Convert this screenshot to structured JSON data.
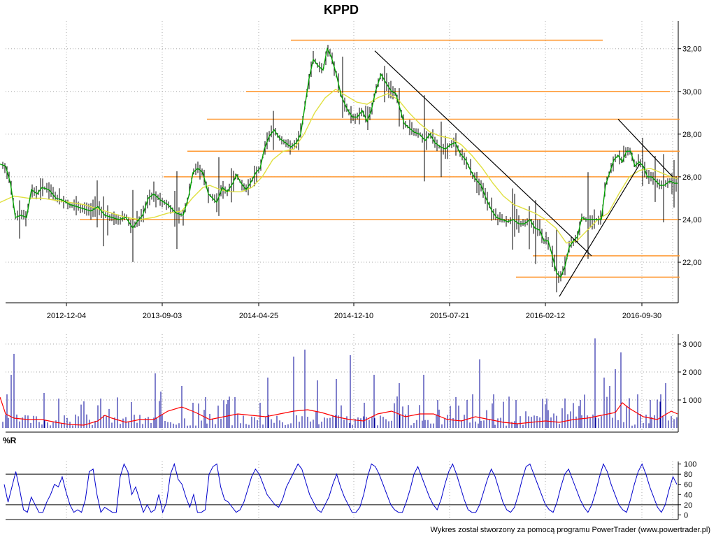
{
  "chart_data": {
    "type": "line",
    "title": "KPPD",
    "footer": "Wykres został stworzony za pomocą programu PowerTrader (www.powertrader.pl)",
    "price_panel": {
      "series_type": "ohlc-bars",
      "x_tick_labels": [
        "2012-12-04",
        "2013-09-03",
        "2014-04-25",
        "2014-12-10",
        "2015-07-21",
        "2016-02-12",
        "2016-09-30"
      ],
      "y_tick_labels": [
        "22,00",
        "24,00",
        "26,00",
        "28,00",
        "30,00",
        "32,00"
      ],
      "y_ticks": [
        22,
        24,
        26,
        28,
        30,
        32
      ],
      "ylim": [
        20.2,
        33.3
      ],
      "close_path": [
        [
          0,
          26.6
        ],
        [
          8,
          26.5
        ],
        [
          15,
          25.7
        ],
        [
          22,
          24.1
        ],
        [
          30,
          24.2
        ],
        [
          38,
          24.1
        ],
        [
          45,
          25.4
        ],
        [
          53,
          25.2
        ],
        [
          60,
          25.5
        ],
        [
          70,
          25.4
        ],
        [
          80,
          25.0
        ],
        [
          90,
          24.9
        ],
        [
          100,
          24.7
        ],
        [
          110,
          24.6
        ],
        [
          120,
          24.5
        ],
        [
          130,
          24.4
        ],
        [
          140,
          24.6
        ],
        [
          150,
          24.2
        ],
        [
          160,
          24.1
        ],
        [
          170,
          24.0
        ],
        [
          180,
          24.1
        ],
        [
          190,
          23.6
        ],
        [
          196,
          23.9
        ],
        [
          204,
          24.2
        ],
        [
          212,
          25.0
        ],
        [
          220,
          25.2
        ],
        [
          230,
          24.9
        ],
        [
          240,
          24.7
        ],
        [
          252,
          24.3
        ],
        [
          262,
          24.2
        ],
        [
          270,
          25.1
        ],
        [
          276,
          26.2
        ],
        [
          283,
          26.4
        ],
        [
          290,
          26.2
        ],
        [
          298,
          25.2
        ],
        [
          304,
          25.0
        ],
        [
          310,
          24.8
        ],
        [
          318,
          25.5
        ],
        [
          325,
          25.3
        ],
        [
          333,
          25.7
        ],
        [
          338,
          26.1
        ],
        [
          345,
          25.7
        ],
        [
          352,
          25.4
        ],
        [
          358,
          25.7
        ],
        [
          366,
          26.2
        ],
        [
          372,
          26.4
        ],
        [
          378,
          27.3
        ],
        [
          385,
          27.9
        ],
        [
          392,
          28.2
        ],
        [
          400,
          27.8
        ],
        [
          408,
          27.6
        ],
        [
          416,
          27.4
        ],
        [
          424,
          27.6
        ],
        [
          430,
          28.0
        ],
        [
          436,
          29.3
        ],
        [
          442,
          30.6
        ],
        [
          448,
          31.5
        ],
        [
          455,
          31.2
        ],
        [
          462,
          31.0
        ],
        [
          468,
          32.0
        ],
        [
          474,
          31.6
        ],
        [
          481,
          30.8
        ],
        [
          488,
          29.8
        ],
        [
          496,
          29.2
        ],
        [
          504,
          28.8
        ],
        [
          511,
          28.8
        ],
        [
          518,
          29.1
        ],
        [
          525,
          28.6
        ],
        [
          531,
          29.1
        ],
        [
          537,
          30.0
        ],
        [
          545,
          30.8
        ],
        [
          552,
          30.4
        ],
        [
          560,
          30.0
        ],
        [
          566,
          29.9
        ],
        [
          572,
          29.2
        ],
        [
          578,
          28.5
        ],
        [
          585,
          28.3
        ],
        [
          592,
          28.1
        ],
        [
          600,
          28.0
        ],
        [
          608,
          27.7
        ],
        [
          615,
          28.0
        ],
        [
          622,
          27.6
        ],
        [
          630,
          27.4
        ],
        [
          637,
          27.3
        ],
        [
          644,
          27.5
        ],
        [
          651,
          27.6
        ],
        [
          658,
          27.1
        ],
        [
          666,
          26.8
        ],
        [
          673,
          26.3
        ],
        [
          680,
          25.9
        ],
        [
          688,
          25.6
        ],
        [
          695,
          25.0
        ],
        [
          702,
          24.5
        ],
        [
          710,
          24.1
        ],
        [
          718,
          24.0
        ],
        [
          726,
          23.9
        ],
        [
          734,
          24.0
        ],
        [
          742,
          23.8
        ],
        [
          750,
          23.8
        ],
        [
          758,
          24.0
        ],
        [
          765,
          23.6
        ],
        [
          772,
          23.5
        ],
        [
          778,
          23.0
        ],
        [
          784,
          23.0
        ],
        [
          790,
          22.3
        ],
        [
          796,
          21.5
        ],
        [
          802,
          21.3
        ],
        [
          808,
          21.8
        ],
        [
          814,
          22.7
        ],
        [
          820,
          23.0
        ],
        [
          826,
          23.2
        ],
        [
          832,
          24.1
        ],
        [
          838,
          24.0
        ],
        [
          846,
          24.0
        ],
        [
          854,
          24.0
        ],
        [
          860,
          24.0
        ],
        [
          866,
          25.6
        ],
        [
          872,
          26.2
        ],
        [
          878,
          26.8
        ],
        [
          884,
          27.0
        ],
        [
          890,
          26.7
        ],
        [
          896,
          27.2
        ],
        [
          902,
          27.2
        ],
        [
          908,
          26.5
        ],
        [
          914,
          26.7
        ],
        [
          920,
          26.5
        ],
        [
          926,
          26.0
        ],
        [
          932,
          26.0
        ],
        [
          938,
          25.8
        ],
        [
          944,
          25.6
        ],
        [
          950,
          25.6
        ],
        [
          958,
          25.8
        ],
        [
          965,
          25.7
        ],
        [
          969,
          25.7
        ]
      ],
      "ma_path": [
        [
          0,
          24.8
        ],
        [
          20,
          25.1
        ],
        [
          40,
          25.0
        ],
        [
          60,
          25.0
        ],
        [
          80,
          24.9
        ],
        [
          100,
          24.8
        ],
        [
          120,
          24.7
        ],
        [
          140,
          24.5
        ],
        [
          160,
          24.3
        ],
        [
          180,
          24.1
        ],
        [
          200,
          24.0
        ],
        [
          220,
          24.1
        ],
        [
          240,
          24.3
        ],
        [
          260,
          24.4
        ],
        [
          275,
          25.0
        ],
        [
          290,
          25.5
        ],
        [
          300,
          25.6
        ],
        [
          315,
          25.4
        ],
        [
          330,
          25.3
        ],
        [
          345,
          25.3
        ],
        [
          360,
          25.5
        ],
        [
          375,
          26.0
        ],
        [
          390,
          26.8
        ],
        [
          405,
          27.2
        ],
        [
          420,
          27.3
        ],
        [
          435,
          28.0
        ],
        [
          450,
          29.0
        ],
        [
          465,
          29.7
        ],
        [
          480,
          30.1
        ],
        [
          495,
          29.8
        ],
        [
          510,
          29.5
        ],
        [
          525,
          29.4
        ],
        [
          540,
          29.7
        ],
        [
          555,
          29.9
        ],
        [
          570,
          29.6
        ],
        [
          585,
          29.0
        ],
        [
          600,
          28.5
        ],
        [
          615,
          28.1
        ],
        [
          630,
          27.9
        ],
        [
          645,
          27.8
        ],
        [
          660,
          27.5
        ],
        [
          675,
          27.0
        ],
        [
          690,
          26.4
        ],
        [
          705,
          25.7
        ],
        [
          720,
          25.1
        ],
        [
          735,
          24.7
        ],
        [
          750,
          24.5
        ],
        [
          765,
          24.3
        ],
        [
          780,
          24.0
        ],
        [
          795,
          23.6
        ],
        [
          810,
          22.9
        ],
        [
          825,
          23.0
        ],
        [
          840,
          23.5
        ],
        [
          855,
          24.0
        ],
        [
          870,
          24.3
        ],
        [
          885,
          25.2
        ],
        [
          900,
          26.0
        ],
        [
          915,
          26.3
        ],
        [
          930,
          26.4
        ],
        [
          945,
          26.2
        ],
        [
          960,
          26.0
        ],
        [
          969,
          25.9
        ]
      ],
      "horizontal_levels": [
        {
          "value": 32.4,
          "x_start": 416,
          "x_end": 862
        },
        {
          "value": 30.0,
          "x_start": 352,
          "x_end": 958
        },
        {
          "value": 28.7,
          "x_start": 296,
          "x_end": 972
        },
        {
          "value": 27.2,
          "x_start": 268,
          "x_end": 972
        },
        {
          "value": 26.0,
          "x_start": 234,
          "x_end": 972
        },
        {
          "value": 24.0,
          "x_start": 114,
          "x_end": 972
        },
        {
          "value": 22.3,
          "x_start": 762,
          "x_end": 972
        },
        {
          "value": 21.3,
          "x_start": 738,
          "x_end": 972
        }
      ],
      "trend_lines": [
        {
          "from": [
            536,
            31.9
          ],
          "to": [
            846,
            22.3
          ]
        },
        {
          "from": [
            800,
            20.4
          ],
          "to": [
            915,
            26.6
          ]
        },
        {
          "from": [
            884,
            28.7
          ],
          "to": [
            962,
            26.0
          ]
        }
      ],
      "colors": {
        "close": "#00a000",
        "ma": "#e0e040",
        "bars": "#000000",
        "levels": "#ff9933",
        "trend": "#000000"
      }
    },
    "volume_panel": {
      "y_tick_labels": [
        "1 000",
        "2 000",
        "3 000"
      ],
      "y_ticks": [
        1000,
        2000,
        3000
      ],
      "ylim": [
        0,
        3350
      ],
      "spikes": [
        [
          20,
          2650
        ],
        [
          16,
          1900
        ],
        [
          10,
          1200
        ],
        [
          63,
          1250
        ],
        [
          144,
          1050
        ],
        [
          222,
          1950
        ],
        [
          230,
          1300
        ],
        [
          260,
          1500
        ],
        [
          276,
          900
        ],
        [
          294,
          1100
        ],
        [
          326,
          1000
        ],
        [
          336,
          1100
        ],
        [
          372,
          900
        ],
        [
          383,
          1800
        ],
        [
          420,
          2550
        ],
        [
          436,
          2800
        ],
        [
          454,
          1700
        ],
        [
          481,
          1750
        ],
        [
          501,
          2600
        ],
        [
          521,
          900
        ],
        [
          535,
          1900
        ],
        [
          571,
          1600
        ],
        [
          606,
          1900
        ],
        [
          626,
          1000
        ],
        [
          668,
          1000
        ],
        [
          686,
          2450
        ],
        [
          706,
          1200
        ],
        [
          738,
          1000
        ],
        [
          782,
          1050
        ],
        [
          830,
          1000
        ],
        [
          851,
          3200
        ],
        [
          864,
          1800
        ],
        [
          872,
          1500
        ],
        [
          880,
          2100
        ],
        [
          888,
          2700
        ],
        [
          912,
          1200
        ],
        [
          930,
          1000
        ],
        [
          945,
          1200
        ],
        [
          952,
          1600
        ]
      ],
      "ma_path": [
        [
          0,
          1100
        ],
        [
          8,
          500
        ],
        [
          20,
          350
        ],
        [
          40,
          300
        ],
        [
          60,
          300
        ],
        [
          80,
          200
        ],
        [
          100,
          120
        ],
        [
          120,
          100
        ],
        [
          140,
          250
        ],
        [
          150,
          450
        ],
        [
          160,
          350
        ],
        [
          180,
          200
        ],
        [
          200,
          300
        ],
        [
          220,
          300
        ],
        [
          240,
          600
        ],
        [
          260,
          750
        ],
        [
          280,
          550
        ],
        [
          300,
          300
        ],
        [
          320,
          400
        ],
        [
          340,
          500
        ],
        [
          360,
          450
        ],
        [
          380,
          400
        ],
        [
          400,
          500
        ],
        [
          420,
          600
        ],
        [
          440,
          650
        ],
        [
          460,
          550
        ],
        [
          480,
          400
        ],
        [
          500,
          300
        ],
        [
          520,
          250
        ],
        [
          540,
          500
        ],
        [
          560,
          600
        ],
        [
          580,
          400
        ],
        [
          600,
          500
        ],
        [
          620,
          500
        ],
        [
          640,
          300
        ],
        [
          660,
          250
        ],
        [
          680,
          400
        ],
        [
          700,
          300
        ],
        [
          720,
          200
        ],
        [
          740,
          150
        ],
        [
          760,
          200
        ],
        [
          780,
          250
        ],
        [
          800,
          200
        ],
        [
          820,
          300
        ],
        [
          840,
          350
        ],
        [
          860,
          450
        ],
        [
          880,
          550
        ],
        [
          890,
          900
        ],
        [
          900,
          700
        ],
        [
          920,
          400
        ],
        [
          940,
          300
        ],
        [
          960,
          600
        ],
        [
          969,
          500
        ]
      ],
      "colors": {
        "volume": "#000099",
        "ma": "#ff0000"
      }
    },
    "williams_r_panel": {
      "label": "%R",
      "y_tick_labels": [
        "0",
        "20",
        "40",
        "60",
        "80",
        "100"
      ],
      "y_ticks": [
        0,
        20,
        40,
        60,
        80,
        100
      ],
      "ylim": [
        -5,
        105
      ],
      "reference_lines": [
        20,
        80
      ],
      "values": [
        60,
        25,
        55,
        85,
        50,
        10,
        5,
        35,
        20,
        5,
        5,
        25,
        40,
        60,
        55,
        75,
        45,
        20,
        5,
        10,
        5,
        30,
        85,
        90,
        40,
        5,
        15,
        10,
        5,
        5,
        75,
        100,
        85,
        40,
        55,
        30,
        5,
        20,
        5,
        10,
        40,
        5,
        25,
        80,
        100,
        70,
        60,
        35,
        15,
        40,
        5,
        5,
        10,
        80,
        95,
        100,
        55,
        30,
        25,
        15,
        5,
        10,
        25,
        50,
        75,
        90,
        80,
        60,
        40,
        30,
        20,
        15,
        30,
        55,
        70,
        85,
        100,
        90,
        65,
        40,
        25,
        10,
        5,
        20,
        35,
        60,
        80,
        55,
        35,
        20,
        5,
        5,
        15,
        40,
        75,
        100,
        95,
        80,
        60,
        40,
        20,
        10,
        5,
        5,
        25,
        50,
        80,
        95,
        75,
        55,
        35,
        20,
        10,
        30,
        60,
        85,
        100,
        80,
        55,
        30,
        10,
        5,
        5,
        20,
        45,
        70,
        90,
        75,
        50,
        25,
        10,
        5,
        15,
        40,
        70,
        95,
        100,
        80,
        60,
        40,
        20,
        10,
        5,
        25,
        55,
        80,
        90,
        70,
        50,
        30,
        15,
        5,
        20,
        45,
        75,
        100,
        85,
        60,
        40,
        20,
        10,
        5,
        30,
        60,
        85,
        100,
        80,
        55,
        35,
        15,
        5,
        20,
        50,
        75,
        60
      ]
    }
  }
}
